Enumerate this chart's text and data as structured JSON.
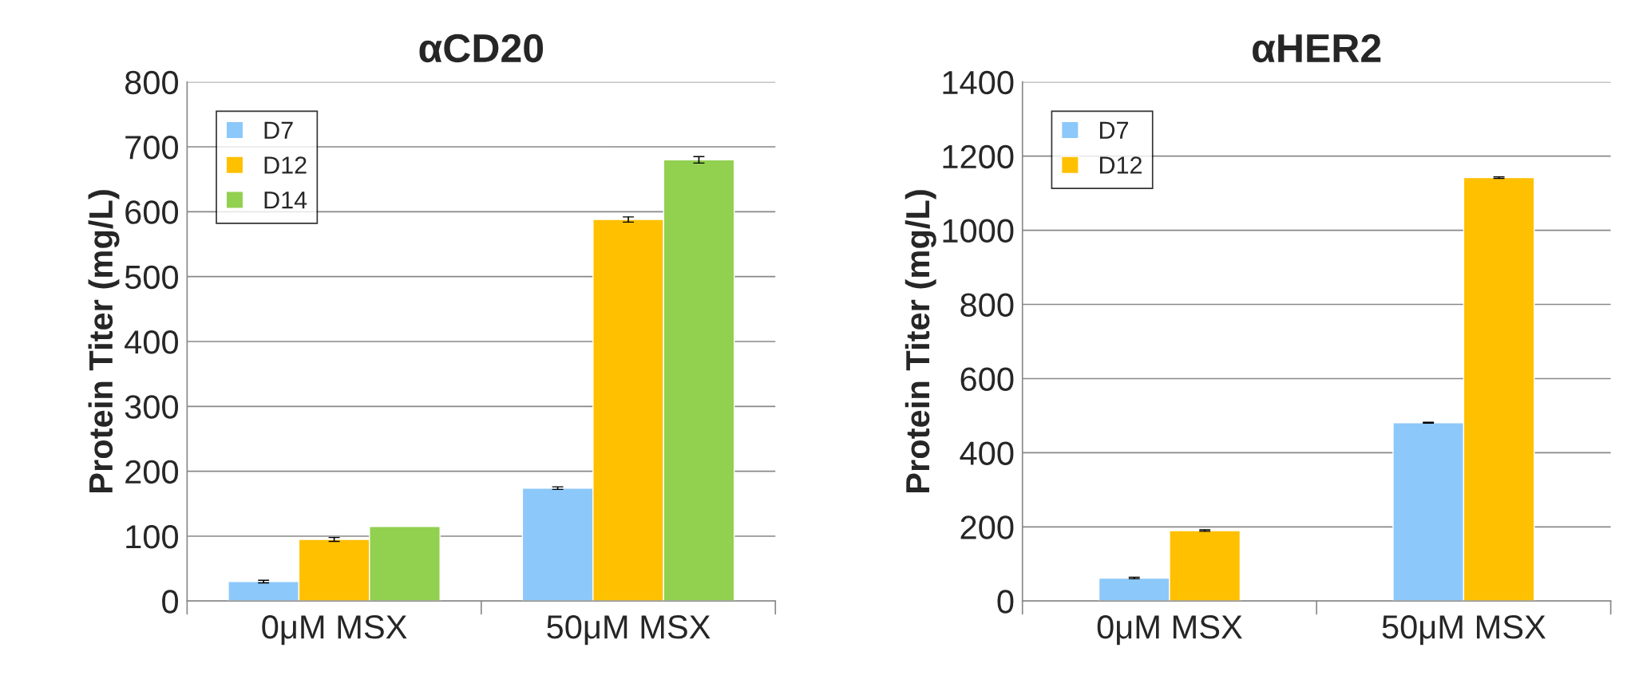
{
  "chart_data": [
    {
      "type": "bar",
      "title": "αCD20",
      "ylabel": "Protein Titer (mg/L)",
      "categories": [
        "0μM MSX",
        "50μM MSX"
      ],
      "ylim": [
        0,
        800
      ],
      "yticks": [
        0,
        100,
        200,
        300,
        400,
        500,
        600,
        700,
        800
      ],
      "grid": "y",
      "legend": "top left",
      "series": [
        {
          "name": "D7",
          "color": "#8cc8fa",
          "values": [
            30,
            174
          ],
          "errors": [
            2,
            2
          ]
        },
        {
          "name": "D12",
          "color": "#ffc000",
          "values": [
            95,
            588
          ],
          "errors": [
            3,
            4
          ]
        },
        {
          "name": "D14",
          "color": "#92d050",
          "values": [
            115,
            680
          ],
          "errors": [
            null,
            5
          ]
        }
      ]
    },
    {
      "type": "bar",
      "title": "αHER2",
      "ylabel": "Protein Titer (mg/L)",
      "categories": [
        "0μM MSX",
        "50μM MSX"
      ],
      "ylim": [
        0,
        1400
      ],
      "yticks": [
        0,
        200,
        400,
        600,
        800,
        1000,
        1200,
        1400
      ],
      "grid": "y",
      "legend": "top left",
      "series": [
        {
          "name": "D7",
          "color": "#8cc8fa",
          "values": [
            62,
            481
          ],
          "errors": [
            2,
            1
          ]
        },
        {
          "name": "D12",
          "color": "#ffc000",
          "values": [
            190,
            1142
          ],
          "errors": [
            2,
            2
          ]
        }
      ]
    }
  ]
}
